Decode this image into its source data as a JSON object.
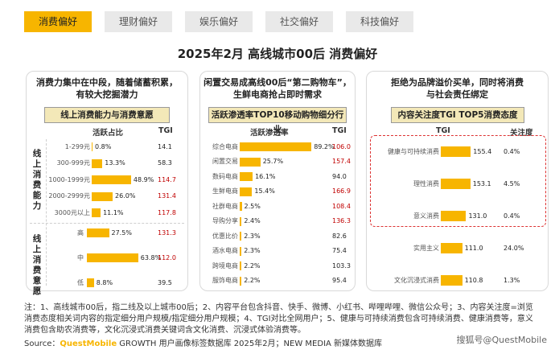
{
  "tabs": [
    "消费偏好",
    "理财偏好",
    "娱乐偏好",
    "社交偏好",
    "科技偏好"
  ],
  "title": "2025年2月 高线城市00后 消费偏好",
  "panels": {
    "left": {
      "title_l1": "消费力集中在中段，随着储蓄积累，",
      "title_l2": "有较大挖掘潜力",
      "subtitle": "线上消费能力与消费意愿",
      "col_share": "活跃占比",
      "col_tgi": "TGI",
      "group1_label": "线上消费能力",
      "group2_label": "线上消费意愿"
    },
    "middle": {
      "title_l1": "闲置交易成高线00后“第二购物车”，",
      "title_l2": "生鲜电商抢占即时需求",
      "subtitle": "活跃渗透率TOP10移动购物细分行业",
      "col_pen": "活跃渗透率",
      "col_tgi": "TGI"
    },
    "right": {
      "title_l1": "拒绝为品牌溢价买单，同时将消费",
      "title_l2": "与社会责任绑定",
      "subtitle": "内容关注度TGI TOP5消费态度",
      "col_tgi": "TGI",
      "col_att": "关注度"
    }
  },
  "colors": {
    "accent": "#f7b500",
    "highlight_red": "#c00000",
    "subtitle_bg": "#f3e8b8"
  },
  "chart_data": [
    {
      "type": "bar",
      "name": "线上消费能力",
      "categories": [
        "1-299元",
        "300-999元",
        "1000-1999元",
        "2000-2999元",
        "3000元以上"
      ],
      "values": [
        0.8,
        13.3,
        48.9,
        26.0,
        11.1
      ],
      "labels": [
        "0.8%",
        "13.3%",
        "48.9%",
        "26.0%",
        "11.1%"
      ],
      "tgi": [
        "14.1",
        "58.3",
        "114.7",
        "131.4",
        "117.8"
      ],
      "tgi_red": [
        false,
        false,
        true,
        true,
        true
      ],
      "xlim": [
        0,
        70
      ]
    },
    {
      "type": "bar",
      "name": "线上消费意愿",
      "categories": [
        "高",
        "中",
        "低"
      ],
      "values": [
        27.5,
        63.8,
        8.8
      ],
      "labels": [
        "27.5%",
        "63.8%",
        "8.8%"
      ],
      "tgi": [
        "131.3",
        "112.0",
        "39.5"
      ],
      "tgi_red": [
        true,
        true,
        false
      ],
      "xlim": [
        0,
        70
      ]
    },
    {
      "type": "bar",
      "name": "活跃渗透率TOP10移动购物细分行业",
      "categories": [
        "综合电商",
        "闲置交易",
        "数码电商",
        "生鲜电商",
        "社群电商",
        "导购分享",
        "优惠比价",
        "酒水电商",
        "跨境电商",
        "服饰电商"
      ],
      "values": [
        89.2,
        25.7,
        16.1,
        15.4,
        2.5,
        2.4,
        2.3,
        2.3,
        2.2,
        2.2
      ],
      "labels": [
        "89.2%",
        "25.7%",
        "16.1%",
        "15.4%",
        "2.5%",
        "2.4%",
        "2.3%",
        "2.3%",
        "2.2%",
        "2.2%"
      ],
      "tgi": [
        "106.0",
        "157.4",
        "94.0",
        "166.9",
        "108.4",
        "136.3",
        "82.6",
        "75.4",
        "103.3",
        "95.4"
      ],
      "tgi_red": [
        true,
        true,
        false,
        true,
        true,
        true,
        false,
        false,
        false,
        false
      ],
      "xlim": [
        0,
        100
      ]
    },
    {
      "type": "bar",
      "name": "内容关注度TGI TOP5消费态度",
      "categories": [
        "健康与可持续消费",
        "理性消费",
        "意义消费",
        "实用主义",
        "文化沉浸式消费"
      ],
      "values": [
        155.4,
        153.1,
        131.0,
        111.0,
        110.8
      ],
      "labels": [
        "155.4",
        "153.1",
        "131.0",
        "111.0",
        "110.8"
      ],
      "attention": [
        "0.4%",
        "4.5%",
        "0.4%",
        "24.0%",
        "1.3%"
      ],
      "xlim": [
        0,
        200
      ]
    }
  ],
  "note": "注：1、高线城市00后，指二线及以上城市00后；2、内容平台包含抖音、快手、微博、小红书、哔哩哔哩、微信公众号；3、内容关注度=浏览消费态度相关词内容的指定细分用户规模/指定细分用户规模；4、TGI对比全网用户；5、健康与可持续消费包含可持续消费、健康消费等，意义消费包含助农消费等，文化沉浸式消费关键词含文化消费、沉浸式体验消费等。",
  "source": {
    "prefix": "Source：",
    "brand": "QuestMobile",
    "rest": " GROWTH 用户画像标签数据库 2025年2月；NEW MEDIA 新媒体数据库"
  },
  "watermark": "搜狐号@QuestMobile"
}
